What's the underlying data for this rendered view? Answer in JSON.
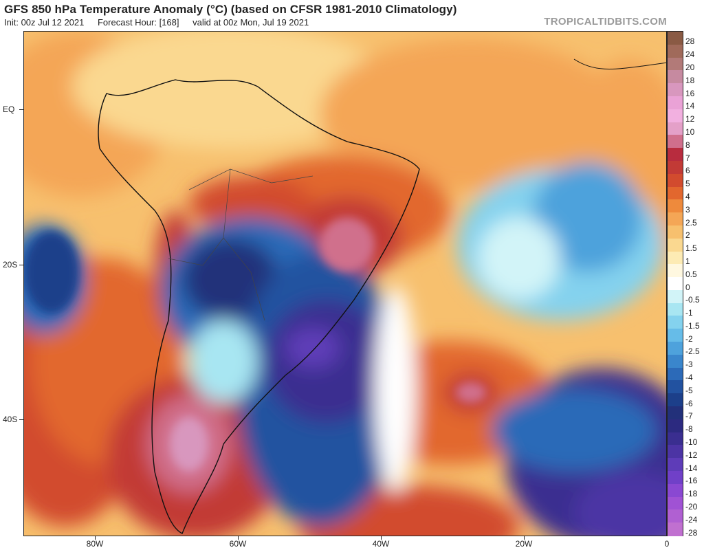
{
  "header": {
    "title": "GFS 850 hPa Temperature Anomaly (°C) (based on CFSR 1981-2010 Climatology)",
    "init": "Init: 00z Jul 12 2021",
    "forecast_hour": "Forecast Hour: [168]",
    "valid": "valid at 00z Mon, Jul 19 2021",
    "brand": "TROPICALTIDBITS.COM"
  },
  "axes": {
    "lat_labels": [
      "EQ",
      "20S",
      "40S"
    ],
    "lon_labels": [
      "80W",
      "60W",
      "40W",
      "20W",
      "0"
    ]
  },
  "colorbar": {
    "labels": [
      "28",
      "24",
      "20",
      "18",
      "16",
      "14",
      "12",
      "10",
      "8",
      "7",
      "6",
      "5",
      "4",
      "3",
      "2.5",
      "2",
      "1.5",
      "1",
      "0.5",
      "0",
      "-0.5",
      "-1",
      "-1.5",
      "-2",
      "-2.5",
      "-3",
      "-4",
      "-5",
      "-6",
      "-7",
      "-8",
      "-10",
      "-12",
      "-14",
      "-16",
      "-18",
      "-20",
      "-24",
      "-28"
    ],
    "colors": [
      "#8a5a44",
      "#a06a5a",
      "#b27a78",
      "#c68aa0",
      "#d897be",
      "#eaa2d6",
      "#f2b0e0",
      "#e4a0c8",
      "#d06f8c",
      "#b82c3e",
      "#c23a36",
      "#d24b2e",
      "#e2672e",
      "#ee8a3c",
      "#f4a656",
      "#f7c06e",
      "#fad890",
      "#fdebb4",
      "#fff8e0",
      "#ffffff",
      "#d2f4f8",
      "#a8e6f2",
      "#84d2ee",
      "#66bce8",
      "#4ea2dc",
      "#3a86cc",
      "#2c6ab8",
      "#2252a0",
      "#1c3f8a",
      "#22307a",
      "#2c2a80",
      "#3a2e90",
      "#4c34a4",
      "#5e3cb8",
      "#7040c8",
      "#8a48d2",
      "#a052d4",
      "#b060d2",
      "#c070d0"
    ]
  }
}
